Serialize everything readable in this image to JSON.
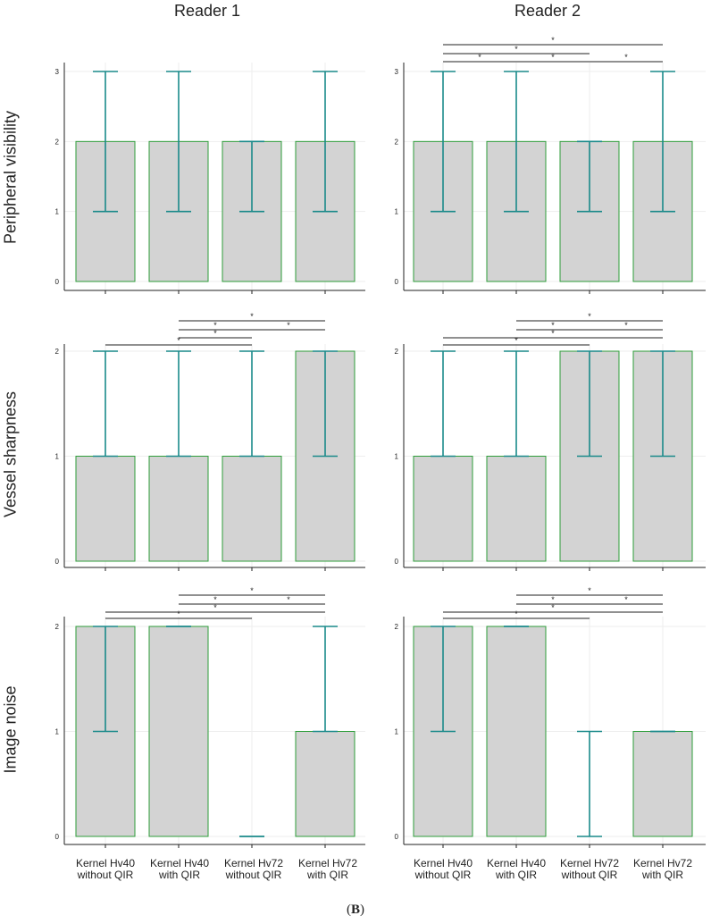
{
  "figure": {
    "panel_label_prefix": "(",
    "panel_label_letter": "B",
    "panel_label_suffix": ")",
    "column_titles": [
      "Reader 1",
      "Reader 2"
    ],
    "row_titles": [
      "Peripheral visibility",
      "Vessel sharpness",
      "Image noise"
    ],
    "category_lines": [
      [
        "Kernel Hv40",
        "without QIR"
      ],
      [
        "Kernel Hv40",
        "with QIR"
      ],
      [
        "Kernel Hv72",
        "without QIR"
      ],
      [
        "Kernel Hv72",
        "with QIR"
      ]
    ]
  },
  "colors": {
    "bar_fill": "#d3d3d3",
    "bar_edge": "#2e9e3a",
    "whisker": "#1a8a8a",
    "axis": "#222222",
    "grid": "#eeeeee"
  },
  "chart_data": [
    {
      "type": "bar",
      "title": "Reader 1",
      "ylabel": "Peripheral visibility",
      "categories": [
        "Kernel Hv40 without QIR",
        "Kernel Hv40 with QIR",
        "Kernel Hv72 without QIR",
        "Kernel Hv72 with QIR"
      ],
      "values": [
        2,
        2,
        2,
        2
      ],
      "whisker_low": [
        1,
        1,
        1,
        1
      ],
      "whisker_high": [
        3,
        3,
        2,
        3
      ],
      "ylim": [
        0,
        3
      ],
      "yticks": [
        0,
        1,
        2,
        3
      ],
      "grid": true,
      "significance": []
    },
    {
      "type": "bar",
      "title": "Reader 2",
      "ylabel": "Peripheral visibility",
      "categories": [
        "Kernel Hv40 without QIR",
        "Kernel Hv40 with QIR",
        "Kernel Hv72 without QIR",
        "Kernel Hv72 with QIR"
      ],
      "values": [
        2,
        2,
        2,
        2
      ],
      "whisker_low": [
        1,
        1,
        1,
        1
      ],
      "whisker_high": [
        3,
        3,
        2,
        3
      ],
      "ylim": [
        0,
        3
      ],
      "yticks": [
        0,
        1,
        2,
        3
      ],
      "grid": true,
      "significance": [
        {
          "from": 0,
          "to": 3,
          "level": 2,
          "label": "*"
        },
        {
          "from": 0,
          "to": 2,
          "level": 1,
          "label": "*"
        },
        {
          "from": 0,
          "to": 1,
          "level": 0,
          "label": "*"
        },
        {
          "from": 1,
          "to": 2,
          "level": 0,
          "label": "*"
        },
        {
          "from": 2,
          "to": 3,
          "level": 0,
          "label": "*"
        }
      ]
    },
    {
      "type": "bar",
      "title": "Reader 1",
      "ylabel": "Vessel sharpness",
      "categories": [
        "Kernel Hv40 without QIR",
        "Kernel Hv40 with QIR",
        "Kernel Hv72 without QIR",
        "Kernel Hv72 with QIR"
      ],
      "values": [
        1,
        1,
        1,
        2
      ],
      "whisker_low": [
        1,
        1,
        1,
        1
      ],
      "whisker_high": [
        2,
        2,
        2,
        2
      ],
      "ylim": [
        0,
        2
      ],
      "yticks": [
        0,
        1,
        2
      ],
      "grid": true,
      "significance": [
        {
          "from": 1,
          "to": 3,
          "level": 3,
          "label": "*"
        },
        {
          "from": 1,
          "to": 2,
          "level": 2,
          "label": "*"
        },
        {
          "from": 2,
          "to": 3,
          "level": 2,
          "label": "*"
        },
        {
          "from": 1,
          "to": 2,
          "level": 1,
          "label": "*"
        },
        {
          "from": 0,
          "to": 2,
          "level": 0,
          "label": "*"
        }
      ]
    },
    {
      "type": "bar",
      "title": "Reader 2",
      "ylabel": "Vessel sharpness",
      "categories": [
        "Kernel Hv40 without QIR",
        "Kernel Hv40 with QIR",
        "Kernel Hv72 without QIR",
        "Kernel Hv72 with QIR"
      ],
      "values": [
        1,
        1,
        2,
        2
      ],
      "whisker_low": [
        1,
        1,
        1,
        1
      ],
      "whisker_high": [
        2,
        2,
        2,
        2
      ],
      "ylim": [
        0,
        2
      ],
      "yticks": [
        0,
        1,
        2
      ],
      "grid": true,
      "significance": [
        {
          "from": 1,
          "to": 3,
          "level": 3,
          "label": "*"
        },
        {
          "from": 1,
          "to": 2,
          "level": 2,
          "label": "*"
        },
        {
          "from": 2,
          "to": 3,
          "level": 2,
          "label": "*"
        },
        {
          "from": 0,
          "to": 3,
          "level": 1,
          "label": "*"
        },
        {
          "from": 0,
          "to": 2,
          "level": 0,
          "label": "*"
        }
      ]
    },
    {
      "type": "bar",
      "title": "Reader 1",
      "ylabel": "Image noise",
      "categories": [
        "Kernel Hv40 without QIR",
        "Kernel Hv40 with QIR",
        "Kernel Hv72 without QIR",
        "Kernel Hv72 with QIR"
      ],
      "values": [
        2,
        2,
        0,
        1
      ],
      "whisker_low": [
        1,
        2,
        0,
        1
      ],
      "whisker_high": [
        2,
        2,
        0,
        2
      ],
      "ylim": [
        0,
        2
      ],
      "yticks": [
        0,
        1,
        2
      ],
      "grid": true,
      "significance": [
        {
          "from": 1,
          "to": 3,
          "level": 3,
          "label": "*"
        },
        {
          "from": 1,
          "to": 2,
          "level": 2,
          "label": "*"
        },
        {
          "from": 2,
          "to": 3,
          "level": 2,
          "label": "*"
        },
        {
          "from": 0,
          "to": 3,
          "level": 1,
          "label": "*"
        },
        {
          "from": 0,
          "to": 2,
          "level": 0,
          "label": "*"
        }
      ]
    },
    {
      "type": "bar",
      "title": "Reader 2",
      "ylabel": "Image noise",
      "categories": [
        "Kernel Hv40 without QIR",
        "Kernel Hv40 with QIR",
        "Kernel Hv72 without QIR",
        "Kernel Hv72 with QIR"
      ],
      "values": [
        2,
        2,
        0,
        1
      ],
      "whisker_low": [
        1,
        2,
        0,
        1
      ],
      "whisker_high": [
        2,
        2,
        1,
        1
      ],
      "ylim": [
        0,
        2
      ],
      "yticks": [
        0,
        1,
        2
      ],
      "grid": true,
      "significance": [
        {
          "from": 1,
          "to": 3,
          "level": 3,
          "label": "*"
        },
        {
          "from": 1,
          "to": 2,
          "level": 2,
          "label": "*"
        },
        {
          "from": 2,
          "to": 3,
          "level": 2,
          "label": "*"
        },
        {
          "from": 0,
          "to": 3,
          "level": 1,
          "label": "*"
        },
        {
          "from": 0,
          "to": 2,
          "level": 0,
          "label": "*"
        }
      ]
    }
  ]
}
